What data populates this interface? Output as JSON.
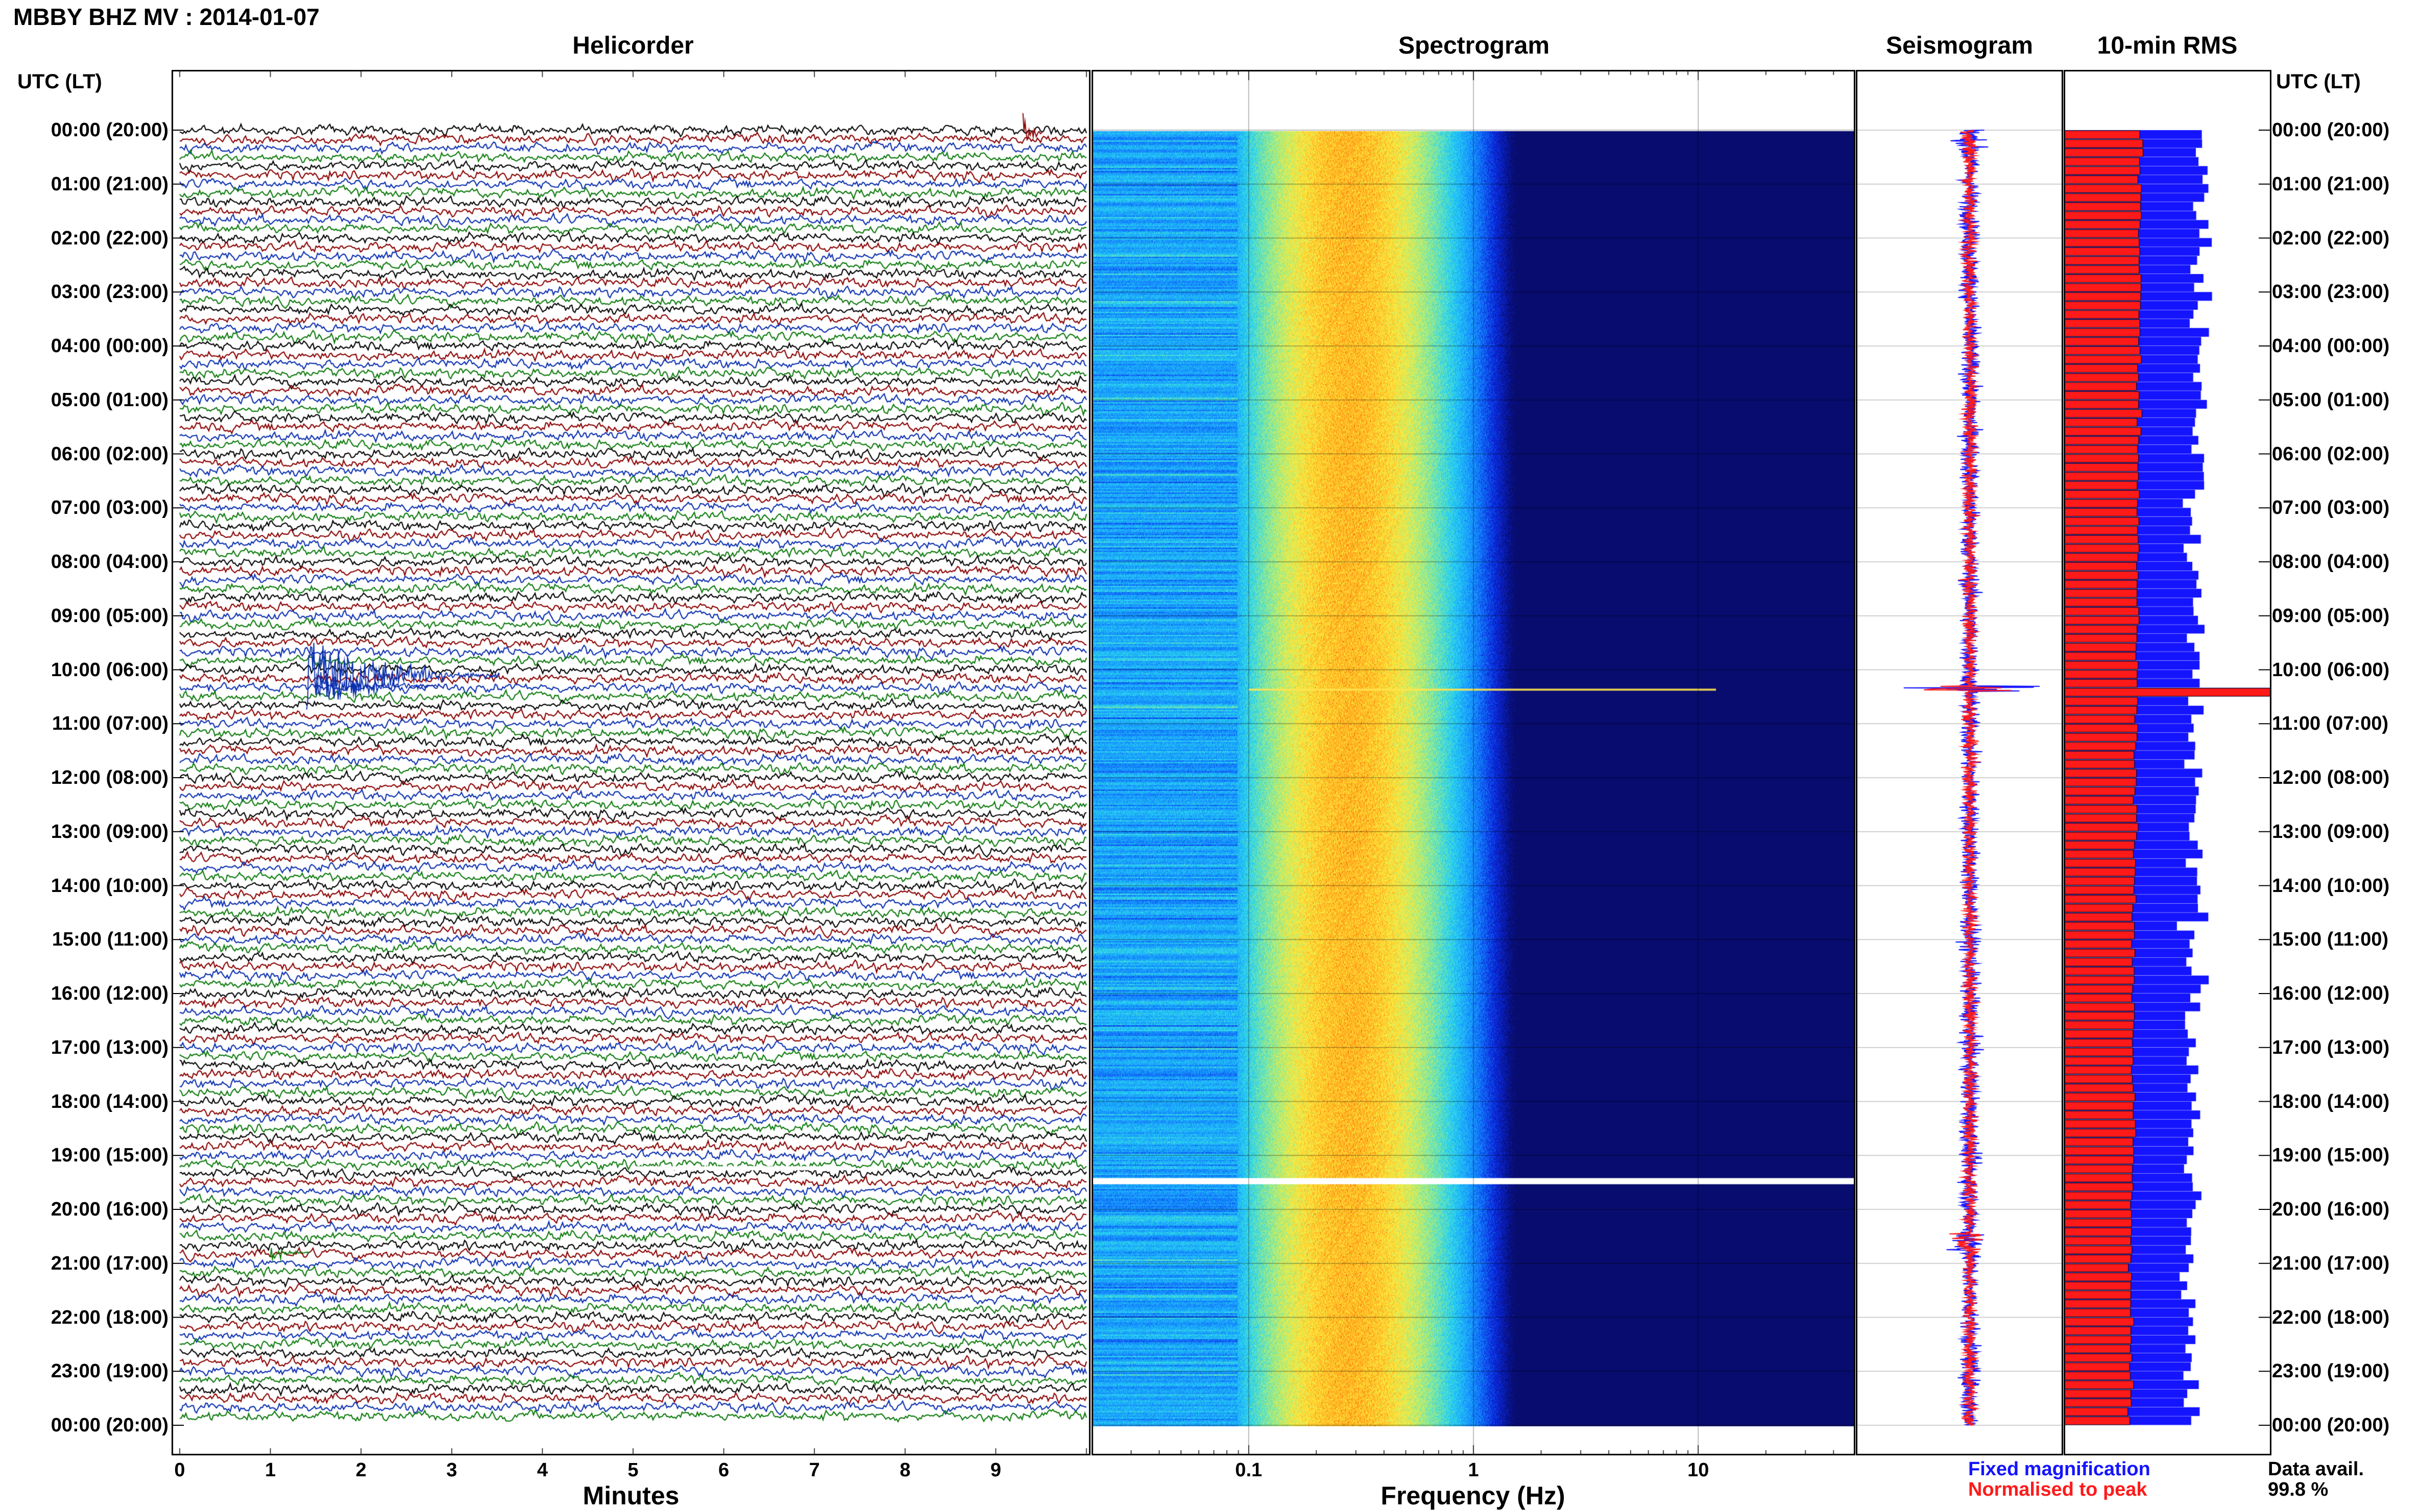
{
  "header": {
    "title": "MBBY BHZ MV : 2014-01-07",
    "panels": [
      "Helicorder",
      "Spectrogram",
      "Seismogram",
      "10-min RMS"
    ],
    "time_axis_label": "UTC (LT)"
  },
  "footer": {
    "legend_fixed": "Fixed magnification",
    "legend_normalised": "Normalised to peak",
    "data_avail_label": "Data avail.",
    "data_avail_value": "99.8 %"
  },
  "colors": {
    "trace_cycle": [
      "#000000",
      "#8b0000",
      "#0a2fb0",
      "#0c7a0c"
    ],
    "fixed": "#1414ff",
    "normalised": "#ff1a1a"
  },
  "chart_data": [
    {
      "type": "line",
      "panel": "Helicorder",
      "xlabel": "Minutes",
      "xlim": [
        0,
        10
      ],
      "xticks": [
        "0",
        "1",
        "2",
        "3",
        "4",
        "5",
        "6",
        "7",
        "8",
        "9"
      ],
      "ylim": [
        "00:00",
        "24:00"
      ],
      "y_tick_labels": [
        "00:00 (20:00)",
        "01:00 (21:00)",
        "02:00 (22:00)",
        "03:00 (23:00)",
        "04:00 (00:00)",
        "05:00 (01:00)",
        "06:00 (02:00)",
        "07:00 (03:00)",
        "08:00 (04:00)",
        "09:00 (05:00)",
        "10:00 (06:00)",
        "11:00 (07:00)",
        "12:00 (08:00)",
        "13:00 (09:00)",
        "14:00 (10:00)",
        "15:00 (11:00)",
        "16:00 (12:00)",
        "17:00 (13:00)",
        "18:00 (14:00)",
        "19:00 (15:00)",
        "20:00 (16:00)",
        "21:00 (17:00)",
        "22:00 (18:00)",
        "23:00 (19:00)",
        "00:00 (20:00)"
      ],
      "events": [
        {
          "time": "00:00",
          "minute": 9.3
        },
        {
          "time": "10:00",
          "minute": 1.8
        },
        {
          "time": "20:30",
          "minute": 1.0
        }
      ]
    },
    {
      "type": "heatmap",
      "panel": "Spectrogram",
      "xlabel": "Frequency (Hz)",
      "x_scale": "log",
      "xlim": [
        0.02,
        50
      ],
      "xticks": [
        "0.1",
        "1",
        "10"
      ],
      "ylim": [
        "00:00",
        "24:00"
      ],
      "grid": true
    },
    {
      "type": "line",
      "panel": "Seismogram",
      "ylim": [
        "00:00",
        "24:00"
      ]
    },
    {
      "type": "bar",
      "panel": "10-min RMS",
      "ylim": [
        "00:00",
        "24:00"
      ],
      "series": [
        {
          "name": "Fixed magnification"
        },
        {
          "name": "Normalised to peak"
        }
      ]
    }
  ]
}
